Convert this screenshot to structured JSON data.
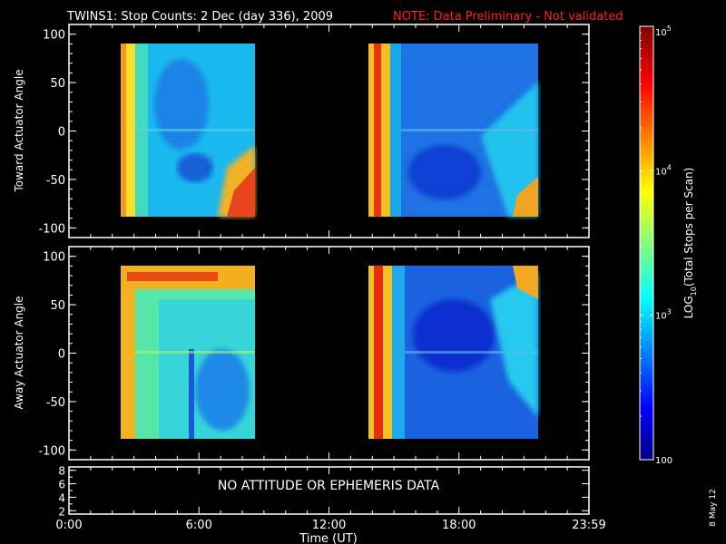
{
  "title": {
    "main": "TWINS1: Stop Counts:  2 Dec (day 336), 2009",
    "note": "NOTE: Data Preliminary - Not validated",
    "main_color": "#ffffff",
    "note_color": "#ff2020"
  },
  "date_stamp": "8 May 12",
  "chart_data": [
    {
      "type": "heatmap",
      "name": "toward",
      "ylabel": "Toward Actuator Angle",
      "ylim": [
        -110,
        110
      ],
      "yticks": [
        100,
        50,
        0,
        -50,
        -100
      ],
      "xlim_hours": [
        0,
        24
      ],
      "data_blocks": [
        {
          "start_hour": 2.05,
          "end_hour": 8.55,
          "angle_min": -88,
          "angle_max": 90
        },
        {
          "start_hour": 14.0,
          "end_hour": 22.45,
          "angle_min": -88,
          "angle_max": 90
        }
      ],
      "log10_levels_approx": {
        "edge_high": 4.9,
        "background": 3.0,
        "minimum": 2.3
      }
    },
    {
      "type": "heatmap",
      "name": "away",
      "ylabel": "Away Actuator Angle",
      "ylim": [
        -110,
        110
      ],
      "yticks": [
        100,
        50,
        0,
        -50,
        -100
      ],
      "xlim_hours": [
        0,
        24
      ],
      "data_blocks": [
        {
          "start_hour": 2.05,
          "end_hour": 8.55,
          "angle_min": -88,
          "angle_max": 90
        },
        {
          "start_hour": 14.0,
          "end_hour": 22.45,
          "angle_min": -88,
          "angle_max": 90
        }
      ],
      "log10_levels_approx": {
        "edge_high": 4.9,
        "background": 3.2,
        "minimum": 2.4
      }
    },
    {
      "type": "line",
      "name": "attitude",
      "ylim": [
        1.5,
        8.5
      ],
      "yticks": [
        8,
        6,
        4,
        2
      ],
      "message": "NO ATTITUDE OR EPHEMERIS DATA"
    }
  ],
  "x_axis": {
    "label": "Time (UT)",
    "ticks": [
      {
        "hour": 0,
        "label": "0:00"
      },
      {
        "hour": 6,
        "label": "6:00"
      },
      {
        "hour": 12,
        "label": "12:00"
      },
      {
        "hour": 18,
        "label": "18:00"
      },
      {
        "hour": 24,
        "label": "23:59"
      }
    ],
    "minor_step_hours": 1
  },
  "colorbar": {
    "label": "LOG10(Total Stops per Scan)",
    "label_prefix": "LOG",
    "label_sub": "10",
    "label_suffix": "(Total Stops per Scan)",
    "log_range": [
      2,
      5
    ],
    "ticks": [
      {
        "value": 5,
        "base": "10",
        "exp": "5"
      },
      {
        "value": 4,
        "base": "10",
        "exp": "4"
      },
      {
        "value": 3,
        "base": "10",
        "exp": "3"
      },
      {
        "value": 2,
        "base": "100",
        "exp": ""
      }
    ]
  },
  "colors": {
    "axis": "#ffffff",
    "background": "#000000"
  }
}
